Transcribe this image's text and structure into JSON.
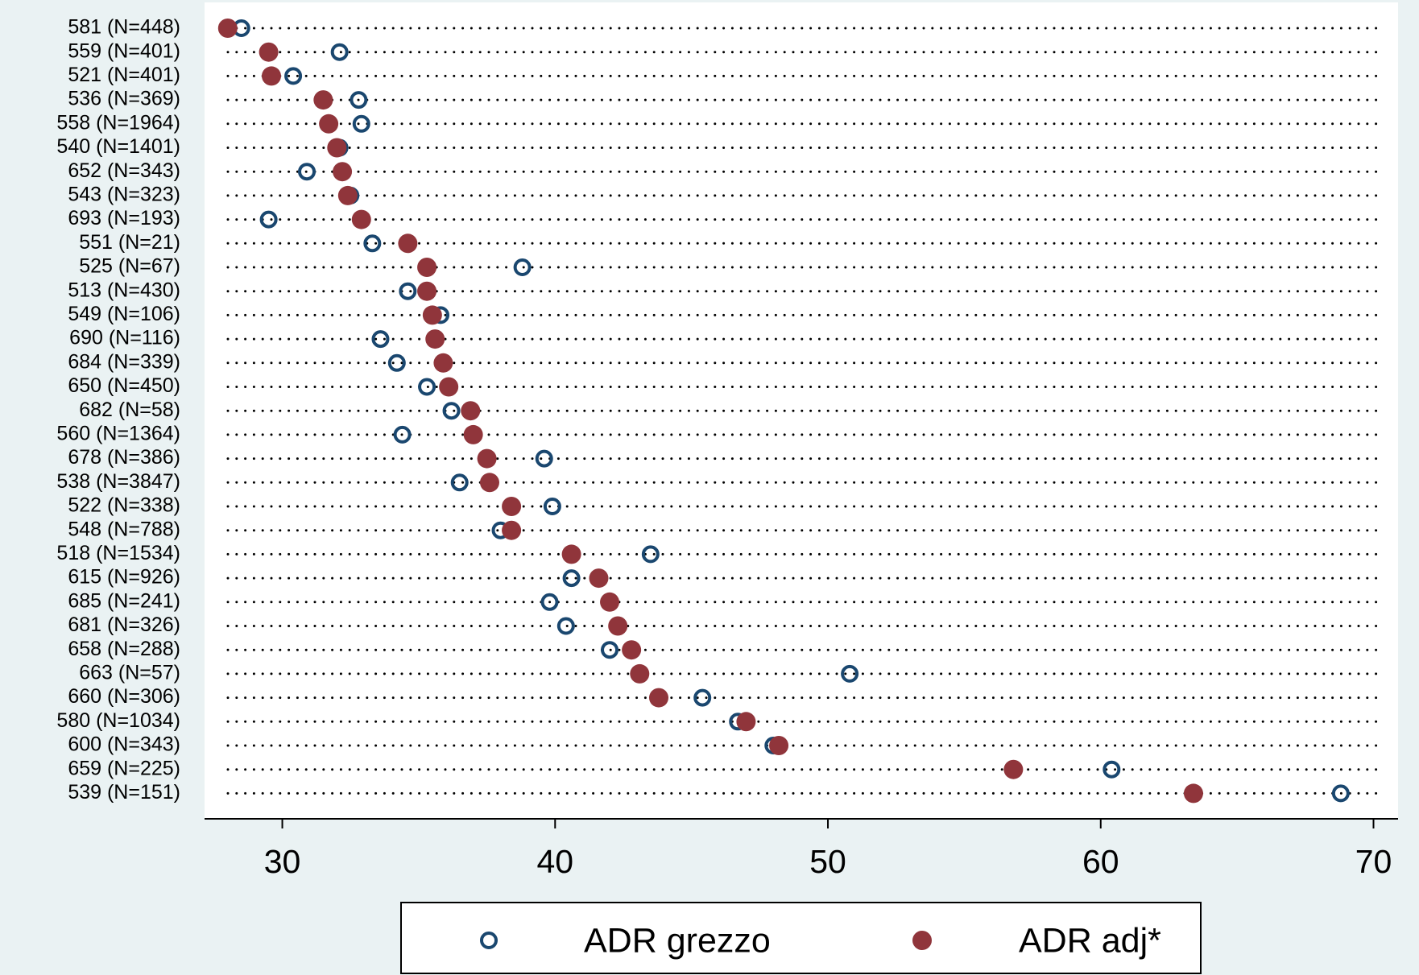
{
  "chart_data": {
    "type": "dot",
    "categories": [
      "581 (N=448)",
      "559 (N=401)",
      "521 (N=401)",
      "536 (N=369)",
      "558 (N=1964)",
      "540 (N=1401)",
      "652 (N=343)",
      "543 (N=323)",
      "693 (N=193)",
      "551 (N=21)",
      "525 (N=67)",
      "513 (N=430)",
      "549 (N=106)",
      "690 (N=116)",
      "684 (N=339)",
      "650 (N=450)",
      "682 (N=58)",
      "560 (N=1364)",
      "678 (N=386)",
      "538 (N=3847)",
      "522 (N=338)",
      "548 (N=788)",
      "518 (N=1534)",
      "615 (N=926)",
      "685 (N=241)",
      "681 (N=326)",
      "658 (N=288)",
      "663 (N=57)",
      "660 (N=306)",
      "580 (N=1034)",
      "600 (N=343)",
      "659 (N=225)",
      "539 (N=151)"
    ],
    "series": [
      {
        "name": "ADR grezzo",
        "color": "#1a476f",
        "marker": "hollow",
        "values": [
          28.5,
          32.1,
          30.4,
          32.8,
          32.9,
          32.1,
          30.9,
          32.5,
          29.5,
          33.3,
          38.8,
          34.6,
          35.8,
          33.6,
          34.2,
          35.3,
          36.2,
          34.4,
          39.6,
          36.5,
          39.9,
          38.0,
          43.5,
          40.6,
          39.8,
          40.4,
          42.0,
          50.8,
          45.4,
          46.7,
          48.0,
          60.4,
          68.8
        ]
      },
      {
        "name": "ADR adj*",
        "color": "#90353b",
        "marker": "filled",
        "values": [
          28.0,
          29.5,
          29.6,
          31.5,
          31.7,
          32.0,
          32.2,
          32.4,
          32.9,
          34.6,
          35.3,
          35.3,
          35.5,
          35.6,
          35.9,
          36.1,
          36.9,
          37.0,
          37.5,
          37.6,
          38.4,
          38.4,
          40.6,
          41.6,
          42.0,
          42.3,
          42.8,
          43.1,
          43.8,
          47.0,
          48.2,
          56.8,
          63.4
        ]
      }
    ],
    "xlim": [
      27.15,
      70.9
    ],
    "xticks": [
      30,
      40,
      50,
      60,
      70
    ]
  }
}
